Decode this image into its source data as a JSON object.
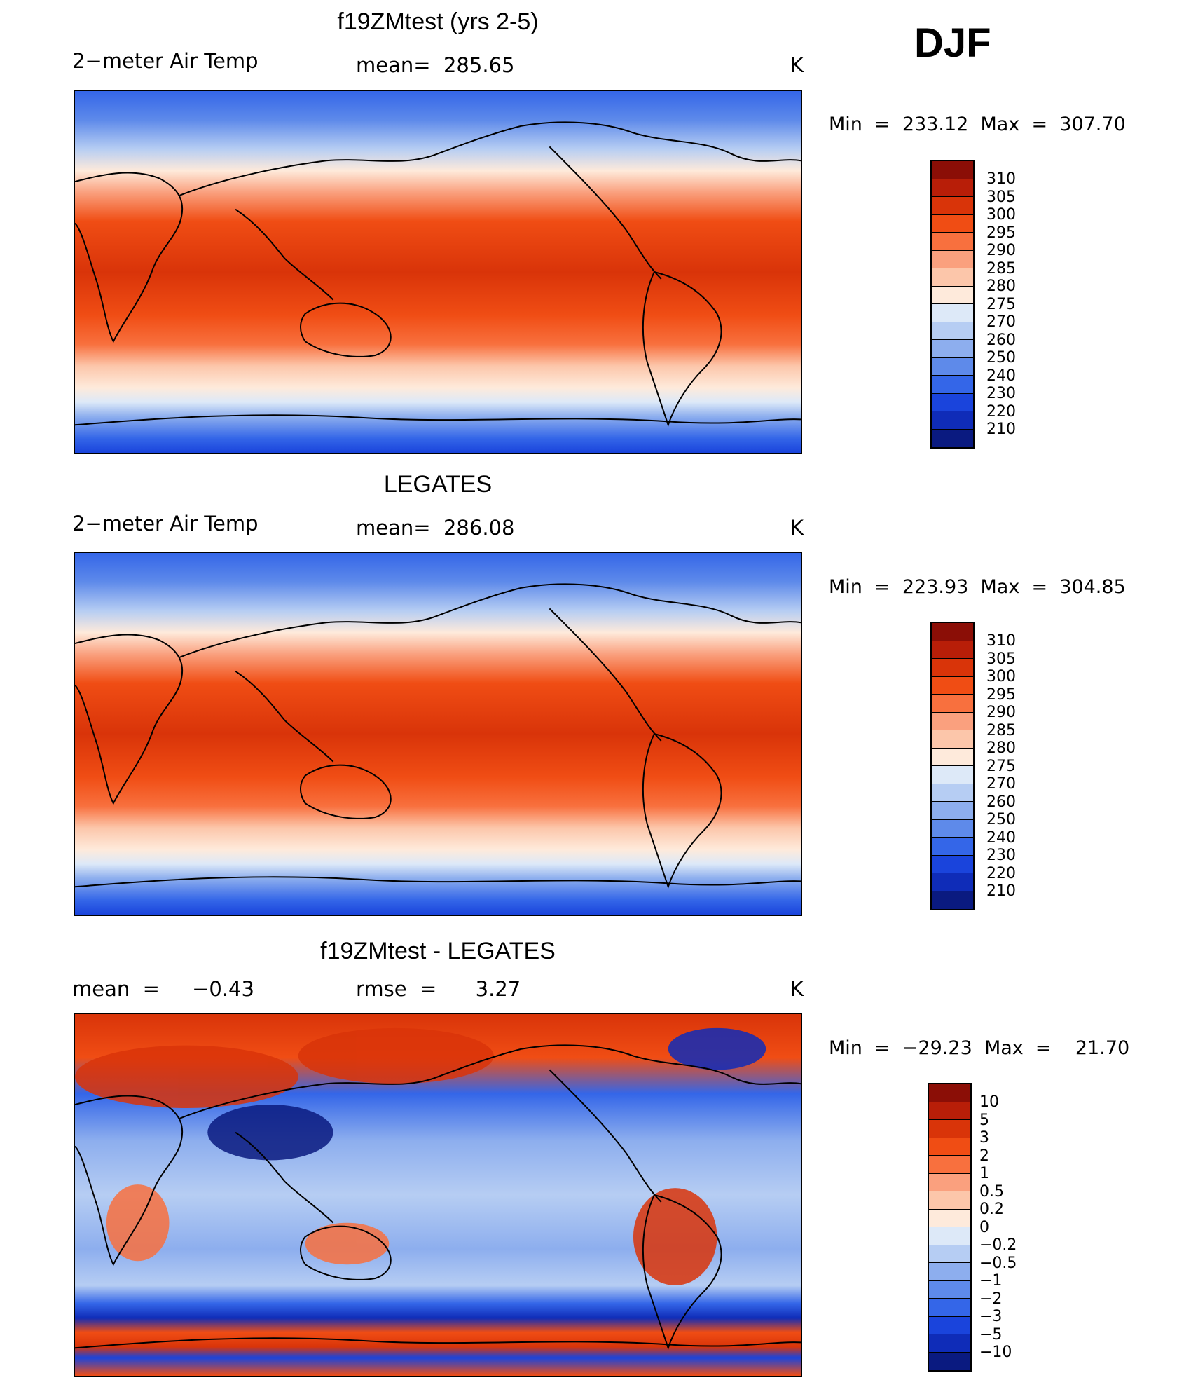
{
  "season": "DJF",
  "panels": [
    {
      "title": "f19ZMtest (yrs 2-5)",
      "left_text": "2−meter Air Temp",
      "center_text": "mean=  285.65",
      "units": "K",
      "minmax": "Min  =  233.12  Max  =  307.70",
      "kind": "abs"
    },
    {
      "title": "LEGATES",
      "left_text": "2−meter Air Temp",
      "center_text": "mean=  286.08",
      "units": "K",
      "minmax": "Min  =  223.93  Max  =  304.85",
      "kind": "abs"
    },
    {
      "title": "f19ZMtest - LEGATES",
      "left_text": "mean  =     −0.43",
      "center_text": "rmse  =      3.27",
      "units": "K",
      "minmax": "Min  =  −29.23  Max  =    21.70",
      "kind": "diff"
    }
  ],
  "colorbar_abs": {
    "labels": [
      "310",
      "305",
      "300",
      "295",
      "290",
      "285",
      "280",
      "275",
      "270",
      "260",
      "250",
      "240",
      "230",
      "220",
      "210"
    ],
    "colors": [
      "#8b0e06",
      "#b81e08",
      "#d93409",
      "#f04d14",
      "#f8703e",
      "#faa07e",
      "#fcc6aa",
      "#feeadb",
      "#dde9f8",
      "#b6cdf3",
      "#8daeee",
      "#5e8aea",
      "#3466e8",
      "#1a44dc",
      "#0f2cb8",
      "#0a1a80"
    ]
  },
  "colorbar_diff": {
    "labels": [
      "10",
      "5",
      "3",
      "2",
      "1",
      "0.5",
      "0.2",
      "0",
      "−0.2",
      "−0.5",
      "−1",
      "−2",
      "−3",
      "−5",
      "−10"
    ],
    "colors": [
      "#8b0e06",
      "#b81e08",
      "#d93409",
      "#f04d14",
      "#f8703e",
      "#faa07e",
      "#fcc6aa",
      "#feeadb",
      "#dde9f8",
      "#b6cdf3",
      "#8daeee",
      "#5e8aea",
      "#3466e8",
      "#1a44dc",
      "#0f2cb8",
      "#0a1a80"
    ]
  }
}
